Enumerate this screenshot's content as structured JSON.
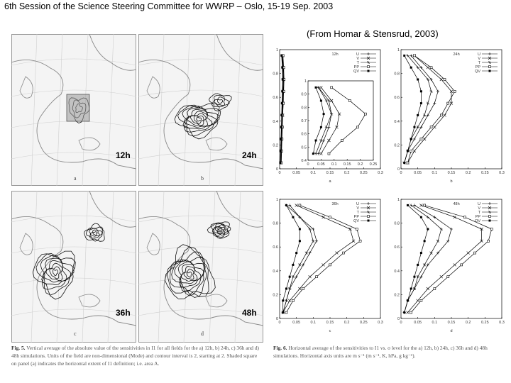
{
  "header": {
    "title": "6th Session of the Science Steering Committee for WWRP – Oslo, 15-19 Sep. 2003",
    "citation": "(From Homar & Stensrud, 2003)"
  },
  "maps": [
    {
      "time": "12h",
      "letter": "a"
    },
    {
      "time": "24h",
      "letter": "b"
    },
    {
      "time": "36h",
      "letter": "c"
    },
    {
      "time": "48h",
      "letter": "d"
    }
  ],
  "captions": {
    "fig5_label": "Fig. 5.",
    "fig5_text": "Vertical average of the absolute value of the sensitivities in I1 for all fields for the a) 12h, b) 24h, c) 36h and d) 48h simulations. Units of the field are non-dimensional (Mode) and contour interval is 2, starting at 2. Shaded square on panel (a) indicates the horizontal extent of I1 definition; i.e. area A.",
    "fig6_label": "Fig. 6.",
    "fig6_text": "Horizontal average of the sensitivities to I1 vs. σ level for the a) 12h, b) 24h, c) 36h and d) 48h simulations. Horizontal axis units are m s⁻¹ (m s⁻¹, K, hPa, g kg⁻¹)."
  },
  "chart_data": [
    {
      "type": "line",
      "title": "12h",
      "panel": "a",
      "xlim": [
        0,
        0.3
      ],
      "ylim": [
        0,
        1
      ],
      "xticks": [
        "0",
        "0.05",
        "0.1",
        "0.15",
        "0.2",
        "0.25",
        "0.3"
      ],
      "yticks": [
        "0",
        "0.2",
        "0.4",
        "0.6",
        "0.8",
        "1"
      ],
      "legend": [
        "U",
        "V",
        "T",
        "PP",
        "QV"
      ],
      "y": [
        0.05,
        0.15,
        0.25,
        0.35,
        0.45,
        0.55,
        0.65,
        0.75,
        0.85,
        0.95
      ],
      "series": [
        {
          "name": "U",
          "values": [
            0.004,
            0.005,
            0.006,
            0.007,
            0.008,
            0.009,
            0.01,
            0.011,
            0.01,
            0.008
          ]
        },
        {
          "name": "V",
          "values": [
            0.004,
            0.005,
            0.006,
            0.007,
            0.009,
            0.01,
            0.011,
            0.012,
            0.011,
            0.009
          ]
        },
        {
          "name": "T",
          "values": [
            0.003,
            0.004,
            0.005,
            0.006,
            0.007,
            0.008,
            0.009,
            0.01,
            0.009,
            0.007
          ]
        },
        {
          "name": "PP",
          "values": [
            0.005,
            0.006,
            0.007,
            0.008,
            0.009,
            0.011,
            0.012,
            0.013,
            0.012,
            0.01
          ]
        },
        {
          "name": "QV",
          "values": [
            0.002,
            0.003,
            0.004,
            0.005,
            0.006,
            0.007,
            0.008,
            0.009,
            0.008,
            0.006
          ]
        }
      ],
      "inset": {
        "xlim": [
          0,
          0.25
        ],
        "ylim": [
          0.4,
          1
        ],
        "xticks": [
          "0",
          "0.05",
          "0.1",
          "0.15",
          "0.2",
          "0.25"
        ],
        "yticks": [
          "0.4",
          "0.5",
          "0.6",
          "0.7",
          "0.8",
          "0.9",
          "1"
        ],
        "y": [
          0.45,
          0.55,
          0.65,
          0.75,
          0.85,
          0.95
        ],
        "series": [
          {
            "name": "U",
            "values": [
              0.04,
              0.06,
              0.08,
              0.09,
              0.07,
              0.04
            ]
          },
          {
            "name": "V",
            "values": [
              0.05,
              0.08,
              0.11,
              0.12,
              0.09,
              0.05
            ]
          },
          {
            "name": "T",
            "values": [
              0.03,
              0.05,
              0.07,
              0.09,
              0.08,
              0.04
            ]
          },
          {
            "name": "PP",
            "values": [
              0.08,
              0.13,
              0.19,
              0.22,
              0.16,
              0.09
            ]
          },
          {
            "name": "QV",
            "values": [
              0.02,
              0.03,
              0.05,
              0.06,
              0.05,
              0.03
            ]
          }
        ]
      }
    },
    {
      "type": "line",
      "title": "24h",
      "panel": "b",
      "xlim": [
        0,
        0.3
      ],
      "ylim": [
        0,
        1
      ],
      "xticks": [
        "0",
        "0.05",
        "0.1",
        "0.15",
        "0.2",
        "0.25",
        "0.3"
      ],
      "yticks": [
        "0",
        "0.2",
        "0.4",
        "0.6",
        "0.8",
        "1"
      ],
      "legend": [
        "U",
        "V",
        "T",
        "PP",
        "QV"
      ],
      "y": [
        0.05,
        0.15,
        0.25,
        0.35,
        0.45,
        0.55,
        0.65,
        0.75,
        0.85,
        0.95
      ],
      "series": [
        {
          "name": "U",
          "values": [
            0.01,
            0.02,
            0.04,
            0.06,
            0.08,
            0.1,
            0.11,
            0.09,
            0.06,
            0.03
          ]
        },
        {
          "name": "V",
          "values": [
            0.02,
            0.04,
            0.07,
            0.1,
            0.13,
            0.15,
            0.15,
            0.12,
            0.08,
            0.04
          ]
        },
        {
          "name": "T",
          "values": [
            0.01,
            0.02,
            0.03,
            0.05,
            0.07,
            0.08,
            0.09,
            0.08,
            0.05,
            0.02
          ]
        },
        {
          "name": "PP",
          "values": [
            0.02,
            0.03,
            0.06,
            0.09,
            0.12,
            0.14,
            0.16,
            0.13,
            0.09,
            0.04
          ]
        },
        {
          "name": "QV",
          "values": [
            0.01,
            0.02,
            0.03,
            0.04,
            0.05,
            0.06,
            0.06,
            0.05,
            0.03,
            0.01
          ]
        }
      ]
    },
    {
      "type": "line",
      "title": "36h",
      "panel": "c",
      "xlim": [
        0,
        0.3
      ],
      "ylim": [
        0,
        1
      ],
      "xticks": [
        "0",
        "0.05",
        "0.1",
        "0.15",
        "0.2",
        "0.25",
        "0.3"
      ],
      "yticks": [
        "0",
        "0.2",
        "0.4",
        "0.6",
        "0.8",
        "1"
      ],
      "legend": [
        "U",
        "V",
        "T",
        "PP",
        "QV"
      ],
      "y": [
        0.05,
        0.15,
        0.25,
        0.35,
        0.45,
        0.55,
        0.65,
        0.75,
        0.85,
        0.95
      ],
      "series": [
        {
          "name": "U",
          "values": [
            0.01,
            0.02,
            0.03,
            0.05,
            0.07,
            0.09,
            0.11,
            0.1,
            0.06,
            0.03
          ]
        },
        {
          "name": "V",
          "values": [
            0.01,
            0.03,
            0.06,
            0.09,
            0.13,
            0.17,
            0.22,
            0.21,
            0.13,
            0.05
          ]
        },
        {
          "name": "T",
          "values": [
            0.01,
            0.02,
            0.03,
            0.04,
            0.06,
            0.08,
            0.1,
            0.09,
            0.06,
            0.02
          ]
        },
        {
          "name": "PP",
          "values": [
            0.02,
            0.04,
            0.07,
            0.11,
            0.15,
            0.19,
            0.24,
            0.23,
            0.15,
            0.06
          ]
        },
        {
          "name": "QV",
          "values": [
            0.01,
            0.01,
            0.02,
            0.03,
            0.04,
            0.05,
            0.06,
            0.06,
            0.04,
            0.02
          ]
        }
      ]
    },
    {
      "type": "line",
      "title": "48h",
      "panel": "d",
      "xlim": [
        0,
        0.3
      ],
      "ylim": [
        0,
        1
      ],
      "xticks": [
        "0",
        "0.05",
        "0.1",
        "0.15",
        "0.2",
        "0.25",
        "0.3"
      ],
      "yticks": [
        "0",
        "0.2",
        "0.4",
        "0.6",
        "0.8",
        "1"
      ],
      "legend": [
        "U",
        "V",
        "T",
        "PP",
        "QV"
      ],
      "y": [
        0.05,
        0.15,
        0.25,
        0.35,
        0.45,
        0.55,
        0.65,
        0.75,
        0.85,
        0.95
      ],
      "series": [
        {
          "name": "U",
          "values": [
            0.01,
            0.02,
            0.04,
            0.06,
            0.08,
            0.11,
            0.14,
            0.15,
            0.1,
            0.04
          ]
        },
        {
          "name": "V",
          "values": [
            0.02,
            0.05,
            0.08,
            0.12,
            0.16,
            0.2,
            0.24,
            0.24,
            0.16,
            0.06
          ]
        },
        {
          "name": "T",
          "values": [
            0.01,
            0.02,
            0.04,
            0.05,
            0.07,
            0.09,
            0.11,
            0.12,
            0.08,
            0.03
          ]
        },
        {
          "name": "PP",
          "values": [
            0.03,
            0.06,
            0.1,
            0.14,
            0.18,
            0.22,
            0.26,
            0.27,
            0.19,
            0.07
          ]
        },
        {
          "name": "QV",
          "values": [
            0.01,
            0.02,
            0.03,
            0.04,
            0.05,
            0.06,
            0.07,
            0.08,
            0.06,
            0.02
          ]
        }
      ]
    }
  ]
}
